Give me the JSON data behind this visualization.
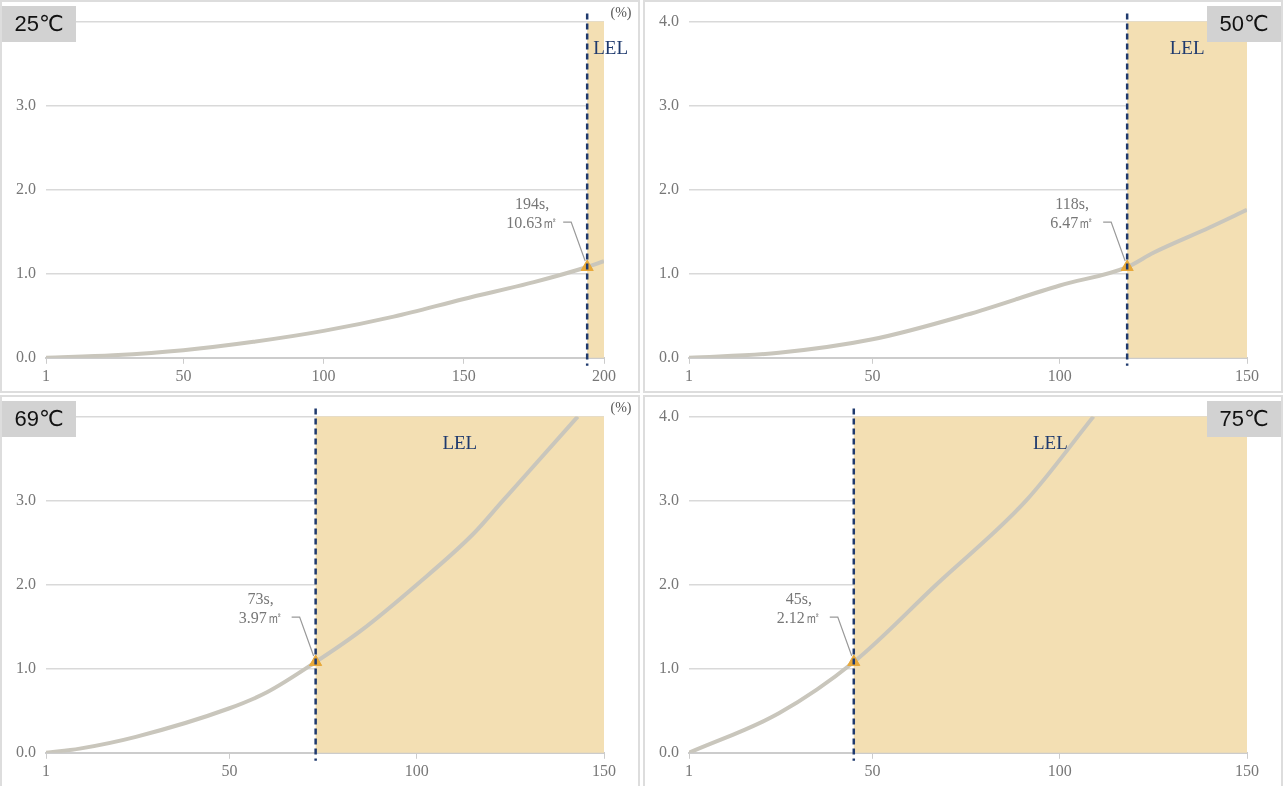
{
  "chart_data": [
    {
      "type": "line",
      "title": "25℃",
      "ylabel": "(%)",
      "xlim": [
        1,
        200
      ],
      "xticks": [
        1,
        50,
        100,
        150,
        200
      ],
      "ylim": [
        0,
        4
      ],
      "yticks": [
        {
          "value": 0,
          "label": "0.0"
        },
        {
          "value": 1,
          "label": "1.0"
        },
        {
          "value": 2,
          "label": "2.0"
        },
        {
          "value": 3,
          "label": "3.0"
        },
        {
          "value": 4,
          "label": null
        }
      ],
      "grid": "y",
      "series": [
        {
          "color": "#c9c6bc",
          "x": [
            1,
            25,
            50,
            75,
            100,
            125,
            150,
            175,
            194,
            200
          ],
          "values": [
            0,
            0.03,
            0.09,
            0.19,
            0.32,
            0.49,
            0.7,
            0.9,
            1.08,
            1.15
          ]
        },
        {
          "type": "scatter",
          "marker": "triangle",
          "color": "#e8a93a",
          "x": [
            194
          ],
          "values": [
            1.08
          ]
        }
      ],
      "bands": [
        {
          "axis": "x",
          "from": 194,
          "to": 200,
          "label": "LEL",
          "color": "#f3dfb3"
        }
      ],
      "ref_lines": [
        {
          "axis": "x",
          "value": 194,
          "color": "#1f3a6e",
          "line_style": "dashed"
        }
      ],
      "annotations": [
        {
          "text": "194s,\n10.63㎡",
          "x": 194,
          "y": 1.08
        }
      ]
    },
    {
      "type": "line",
      "title": "50℃",
      "xlim": [
        1,
        150
      ],
      "xticks": [
        1,
        50,
        100,
        150
      ],
      "ylim": [
        0,
        4
      ],
      "yticks": [
        {
          "value": 0,
          "label": "0.0"
        },
        {
          "value": 1,
          "label": "1.0"
        },
        {
          "value": 2,
          "label": "2.0"
        },
        {
          "value": 3,
          "label": "3.0"
        },
        {
          "value": 4,
          "label": "4.0"
        }
      ],
      "grid": "y",
      "series": [
        {
          "color": "#c9c6bc",
          "x": [
            1,
            25,
            50,
            75,
            100,
            118,
            125,
            140,
            150
          ],
          "values": [
            0,
            0.06,
            0.22,
            0.51,
            0.86,
            1.08,
            1.25,
            1.55,
            1.76
          ]
        },
        {
          "type": "scatter",
          "marker": "triangle",
          "color": "#e8a93a",
          "x": [
            118
          ],
          "values": [
            1.08
          ]
        }
      ],
      "bands": [
        {
          "axis": "x",
          "from": 118,
          "to": 150,
          "label": "LEL",
          "color": "#f3dfb3"
        }
      ],
      "ref_lines": [
        {
          "axis": "x",
          "value": 118,
          "color": "#1f3a6e",
          "line_style": "dashed"
        }
      ],
      "annotations": [
        {
          "text": "118s,\n6.47㎡",
          "x": 118,
          "y": 1.08
        }
      ]
    },
    {
      "type": "line",
      "title": "69℃",
      "ylabel": "(%)",
      "xlim": [
        1,
        150
      ],
      "xticks": [
        1,
        50,
        100,
        150
      ],
      "ylim": [
        0,
        4
      ],
      "yticks": [
        {
          "value": 0,
          "label": "0.0"
        },
        {
          "value": 1,
          "label": "1.0"
        },
        {
          "value": 2,
          "label": "2.0"
        },
        {
          "value": 3,
          "label": "3.0"
        },
        {
          "value": 4,
          "label": null
        }
      ],
      "grid": "y",
      "series": [
        {
          "color": "#c9c6bc",
          "x": [
            1,
            10,
            25,
            50,
            60,
            73,
            85,
            100,
            115,
            123,
            130,
            143
          ],
          "values": [
            0,
            0.05,
            0.19,
            0.53,
            0.72,
            1.08,
            1.45,
            2.0,
            2.6,
            3.0,
            3.35,
            4.0
          ]
        },
        {
          "type": "scatter",
          "marker": "triangle",
          "color": "#e8a93a",
          "x": [
            73
          ],
          "values": [
            1.08
          ]
        }
      ],
      "bands": [
        {
          "axis": "x",
          "from": 73,
          "to": 150,
          "label": "LEL",
          "color": "#f3dfb3"
        }
      ],
      "ref_lines": [
        {
          "axis": "x",
          "value": 73,
          "color": "#1f3a6e",
          "line_style": "dashed"
        }
      ],
      "annotations": [
        {
          "text": "73s,\n3.97㎡",
          "x": 73,
          "y": 1.08
        }
      ]
    },
    {
      "type": "line",
      "title": "75℃",
      "xlim": [
        1,
        150
      ],
      "xticks": [
        1,
        50,
        100,
        150
      ],
      "ylim": [
        0,
        4
      ],
      "yticks": [
        {
          "value": 0,
          "label": "0.0"
        },
        {
          "value": 1,
          "label": "1.0"
        },
        {
          "value": 2,
          "label": "2.0"
        },
        {
          "value": 3,
          "label": "3.0"
        },
        {
          "value": 4,
          "label": "4.0"
        }
      ],
      "grid": "y",
      "series": [
        {
          "color": "#c9c6bc",
          "x": [
            1,
            25,
            45,
            67,
            91,
            109
          ],
          "values": [
            0,
            0.47,
            1.08,
            2.0,
            3.0,
            4.0
          ]
        },
        {
          "type": "scatter",
          "marker": "triangle",
          "color": "#e8a93a",
          "x": [
            45
          ],
          "values": [
            1.08
          ]
        }
      ],
      "bands": [
        {
          "axis": "x",
          "from": 45,
          "to": 150,
          "label": "LEL",
          "color": "#f3dfb3"
        }
      ],
      "ref_lines": [
        {
          "axis": "x",
          "value": 45,
          "color": "#1f3a6e",
          "line_style": "dashed"
        }
      ],
      "annotations": [
        {
          "text": "45s,\n2.12㎡",
          "x": 45,
          "y": 1.08
        }
      ]
    }
  ]
}
